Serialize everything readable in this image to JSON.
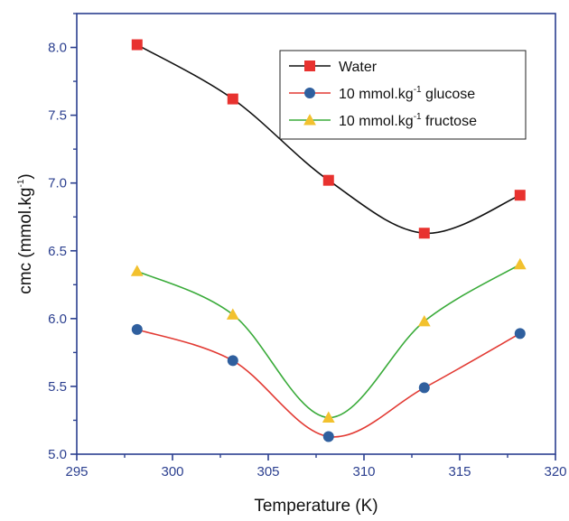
{
  "chart_data": {
    "type": "line",
    "xlabel": "Temperature (K)",
    "ylabel": "cmc (mmol.kg",
    "ylabel_sup": "-1",
    "ylabel_suffix": ")",
    "xlim": [
      295,
      320
    ],
    "ylim": [
      5.0,
      8.25
    ],
    "xticks": [
      "295",
      "300",
      "305",
      "310",
      "315",
      "320"
    ],
    "yticks": [
      "5.0",
      "5.5",
      "6.0",
      "6.5",
      "7.0",
      "7.5",
      "8.0"
    ],
    "grid": false,
    "legend_position": "top-right",
    "x": [
      298.15,
      303.15,
      308.15,
      313.15,
      318.15
    ],
    "series": [
      {
        "name": "Water",
        "name_parts": [
          "Water",
          "",
          ""
        ],
        "values": [
          8.02,
          7.62,
          7.02,
          6.63,
          6.91
        ],
        "line_color": "#111111",
        "marker_color": "#e8322f",
        "marker": "square"
      },
      {
        "name": "10 mmol.kg-1 glucose",
        "name_parts": [
          "10 mmol.kg",
          "-1",
          " glucose"
        ],
        "values": [
          5.92,
          5.69,
          5.13,
          5.49,
          5.89
        ],
        "line_color": "#e23a33",
        "marker_color": "#2f5f9e",
        "marker": "circle"
      },
      {
        "name": "10 mmol.kg-1 fructose",
        "name_parts": [
          "10 mmol.kg",
          "-1",
          " fructose"
        ],
        "values": [
          6.35,
          6.03,
          5.27,
          5.98,
          6.4
        ],
        "line_color": "#3aab3a",
        "marker_color": "#f2c12e",
        "marker": "triangle"
      }
    ]
  },
  "colors": {
    "axis": "#2b3f8f"
  }
}
